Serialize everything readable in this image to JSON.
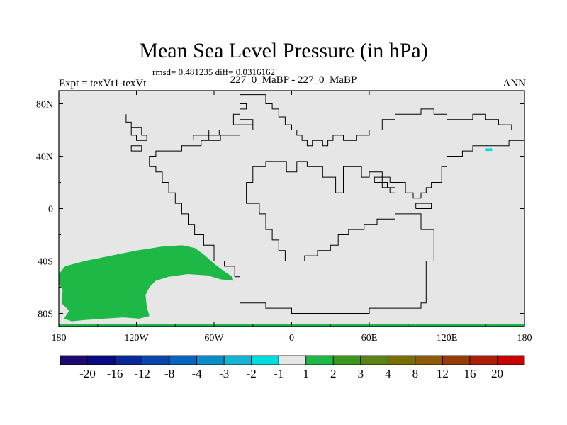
{
  "header": {
    "title": "Mean Sea Level Pressure (in hPa)",
    "stats": "rmsd= 0.481235 diff= 0.0316162",
    "experiment": "Expt = texVt1-texVt",
    "case": "227_0_MaBP - 227_0_MaBP",
    "season": "ANN"
  },
  "chart_data": {
    "type": "heatmap",
    "title": "Mean Sea Level Pressure (in hPa)",
    "xlabel": "",
    "ylabel": "",
    "x_ticks": [
      {
        "value": -180,
        "label": "180"
      },
      {
        "value": -120,
        "label": "120W"
      },
      {
        "value": -60,
        "label": "60W"
      },
      {
        "value": 0,
        "label": "0"
      },
      {
        "value": 60,
        "label": "60E"
      },
      {
        "value": 120,
        "label": "120E"
      },
      {
        "value": 180,
        "label": "180"
      }
    ],
    "y_ticks": [
      {
        "value": 80,
        "label": "80N"
      },
      {
        "value": 40,
        "label": "40N"
      },
      {
        "value": 0,
        "label": "0"
      },
      {
        "value": -40,
        "label": "40S"
      },
      {
        "value": -80,
        "label": "80S"
      }
    ],
    "xlim": [
      -180,
      180
    ],
    "ylim": [
      -90,
      90
    ],
    "background_color": "#e6e6e6",
    "colorbar": {
      "labels": [
        "-20",
        "-16",
        "-12",
        "-8",
        "-4",
        "-3",
        "-2",
        "-1",
        "1",
        "2",
        "3",
        "4",
        "8",
        "12",
        "16",
        "20"
      ],
      "colors": [
        "#1e0a6e",
        "#0a0a82",
        "#0a2896",
        "#0a46aa",
        "#0a64be",
        "#0a8cc8",
        "#14b4d2",
        "#00dcdc",
        "#e6e6e6",
        "#1eb846",
        "#3c961e",
        "#5a8214",
        "#786e0a",
        "#8c5a0a",
        "#963c0a",
        "#aa1e0a",
        "#c80000"
      ]
    },
    "features": [
      {
        "name": "green-anomaly-south-pacific",
        "value_range": "1 to 2",
        "color": "#1eb846",
        "outline": [
          [
            -180,
            -50
          ],
          [
            -175,
            -44
          ],
          [
            -160,
            -40
          ],
          [
            -140,
            -36
          ],
          [
            -120,
            -32
          ],
          [
            -100,
            -29
          ],
          [
            -85,
            -28
          ],
          [
            -75,
            -30
          ],
          [
            -68,
            -35
          ],
          [
            -60,
            -42
          ],
          [
            -52,
            -48
          ],
          [
            -46,
            -52
          ],
          [
            -45,
            -55
          ],
          [
            -55,
            -54
          ],
          [
            -65,
            -51
          ],
          [
            -80,
            -50
          ],
          [
            -95,
            -52
          ],
          [
            -105,
            -55
          ],
          [
            -110,
            -60
          ],
          [
            -113,
            -66
          ],
          [
            -112,
            -75
          ],
          [
            -110,
            -82
          ],
          [
            -118,
            -84
          ],
          [
            -130,
            -83
          ],
          [
            -145,
            -84
          ],
          [
            -160,
            -85
          ],
          [
            -170,
            -86
          ],
          [
            -176,
            -84
          ],
          [
            -172,
            -78
          ],
          [
            -178,
            -72
          ],
          [
            -177,
            -62
          ],
          [
            -180,
            -58
          ]
        ]
      },
      {
        "name": "green-strip-antarctic",
        "value_range": "1 to 2",
        "color": "#1eb846",
        "outline": [
          [
            -180,
            -88
          ],
          [
            180,
            -88
          ],
          [
            180,
            -90
          ],
          [
            -180,
            -90
          ]
        ]
      },
      {
        "name": "cyan-spot-north-pacific",
        "value_range": "-1 to -2",
        "color": "#00dcdc",
        "outline": [
          [
            150,
            46
          ],
          [
            155,
            46
          ],
          [
            155,
            44
          ],
          [
            150,
            44
          ]
        ]
      }
    ],
    "coastlines": [
      [
        [
          -20,
          87
        ],
        [
          -20,
          80
        ],
        [
          -15,
          80
        ],
        [
          -15,
          76
        ],
        [
          -10,
          76
        ],
        [
          -10,
          70
        ],
        [
          -5,
          70
        ],
        [
          -5,
          64
        ],
        [
          0,
          64
        ],
        [
          0,
          60
        ],
        [
          4,
          60
        ],
        [
          4,
          56
        ],
        [
          8,
          56
        ],
        [
          8,
          52
        ],
        [
          12,
          52
        ],
        [
          12,
          48
        ],
        [
          16,
          48
        ],
        [
          16,
          52
        ],
        [
          24,
          52
        ],
        [
          24,
          48
        ],
        [
          28,
          48
        ],
        [
          28,
          52
        ],
        [
          32,
          52
        ],
        [
          32,
          56
        ],
        [
          40,
          56
        ],
        [
          40,
          52
        ],
        [
          50,
          52
        ],
        [
          50,
          56
        ],
        [
          60,
          56
        ],
        [
          60,
          60
        ],
        [
          70,
          60
        ],
        [
          70,
          68
        ],
        [
          80,
          68
        ],
        [
          80,
          72
        ],
        [
          100,
          72
        ],
        [
          100,
          76
        ],
        [
          110,
          76
        ],
        [
          110,
          72
        ],
        [
          120,
          72
        ],
        [
          120,
          68
        ],
        [
          140,
          68
        ],
        [
          140,
          72
        ],
        [
          150,
          72
        ],
        [
          150,
          68
        ],
        [
          160,
          68
        ],
        [
          160,
          64
        ],
        [
          170,
          64
        ],
        [
          170,
          60
        ],
        [
          180,
          60
        ],
        [
          180,
          52
        ],
        [
          168,
          52
        ],
        [
          168,
          48
        ],
        [
          140,
          48
        ],
        [
          140,
          44
        ],
        [
          132,
          44
        ],
        [
          132,
          40
        ],
        [
          120,
          40
        ],
        [
          120,
          32
        ],
        [
          116,
          32
        ],
        [
          116,
          20
        ],
        [
          108,
          20
        ],
        [
          108,
          16
        ],
        [
          104,
          16
        ],
        [
          104,
          12
        ],
        [
          100,
          12
        ],
        [
          100,
          8
        ],
        [
          94,
          8
        ],
        [
          94,
          12
        ],
        [
          88,
          12
        ],
        [
          88,
          20
        ],
        [
          80,
          20
        ],
        [
          80,
          12
        ],
        [
          76,
          12
        ],
        [
          76,
          16
        ],
        [
          70,
          16
        ],
        [
          70,
          28
        ],
        [
          60,
          28
        ],
        [
          60,
          24
        ],
        [
          54,
          24
        ],
        [
          54,
          32
        ],
        [
          40,
          32
        ],
        [
          40,
          12
        ],
        [
          34,
          12
        ],
        [
          34,
          24
        ],
        [
          24,
          24
        ],
        [
          24,
          32
        ],
        [
          12,
          32
        ],
        [
          12,
          36
        ],
        [
          4,
          36
        ],
        [
          4,
          28
        ],
        [
          -4,
          28
        ],
        [
          -4,
          36
        ],
        [
          -20,
          36
        ],
        [
          -20,
          32
        ],
        [
          -30,
          32
        ],
        [
          -30,
          20
        ],
        [
          -35,
          20
        ],
        [
          -35,
          4
        ],
        [
          -25,
          4
        ],
        [
          -25,
          -4
        ],
        [
          -20,
          -4
        ],
        [
          -20,
          -16
        ],
        [
          -15,
          -16
        ],
        [
          -15,
          -24
        ],
        [
          -10,
          -24
        ],
        [
          -10,
          -32
        ],
        [
          -5,
          -32
        ],
        [
          -5,
          -40
        ],
        [
          10,
          -40
        ],
        [
          10,
          -36
        ],
        [
          20,
          -36
        ],
        [
          20,
          -32
        ],
        [
          30,
          -32
        ],
        [
          30,
          -28
        ],
        [
          36,
          -28
        ],
        [
          36,
          -20
        ],
        [
          44,
          -20
        ],
        [
          44,
          -16
        ],
        [
          56,
          -16
        ],
        [
          56,
          -12
        ],
        [
          66,
          -12
        ],
        [
          66,
          -8
        ],
        [
          80,
          -8
        ],
        [
          80,
          -4
        ],
        [
          100,
          -4
        ],
        [
          100,
          -16
        ],
        [
          110,
          -16
        ],
        [
          110,
          -40
        ],
        [
          104,
          -40
        ],
        [
          104,
          -72
        ],
        [
          100,
          -72
        ],
        [
          100,
          -76
        ],
        [
          60,
          -76
        ],
        [
          60,
          -80
        ],
        [
          0,
          -80
        ],
        [
          0,
          -76
        ],
        [
          -20,
          -76
        ],
        [
          -20,
          -72
        ],
        [
          -40,
          -72
        ],
        [
          -40,
          -52
        ],
        [
          -44,
          -52
        ],
        [
          -44,
          -44
        ],
        [
          -52,
          -44
        ],
        [
          -52,
          -40
        ],
        [
          -60,
          -40
        ],
        [
          -60,
          -28
        ],
        [
          -68,
          -28
        ],
        [
          -68,
          -20
        ],
        [
          -75,
          -20
        ],
        [
          -75,
          -12
        ],
        [
          -80,
          -12
        ],
        [
          -80,
          -4
        ],
        [
          -85,
          -4
        ],
        [
          -85,
          4
        ],
        [
          -90,
          4
        ],
        [
          -90,
          12
        ],
        [
          -95,
          12
        ],
        [
          -95,
          20
        ],
        [
          -100,
          20
        ],
        [
          -100,
          28
        ],
        [
          -105,
          28
        ],
        [
          -105,
          32
        ],
        [
          -110,
          32
        ],
        [
          -110,
          40
        ],
        [
          -105,
          40
        ],
        [
          -105,
          44
        ],
        [
          -85,
          44
        ],
        [
          -85,
          48
        ],
        [
          -70,
          48
        ],
        [
          -70,
          52
        ],
        [
          -55,
          52
        ],
        [
          -55,
          56
        ],
        [
          -40,
          56
        ],
        [
          -40,
          60
        ],
        [
          -30,
          60
        ],
        [
          -30,
          64
        ],
        [
          -45,
          64
        ],
        [
          -45,
          72
        ],
        [
          -40,
          72
        ],
        [
          -40,
          76
        ],
        [
          -35,
          76
        ],
        [
          -35,
          80
        ],
        [
          -40,
          80
        ],
        [
          -40,
          87
        ],
        [
          -20,
          87
        ]
      ],
      [
        [
          -128,
          72
        ],
        [
          -128,
          66
        ],
        [
          -124,
          66
        ],
        [
          -124,
          62
        ],
        [
          -116,
          62
        ],
        [
          -116,
          56
        ],
        [
          -112,
          56
        ],
        [
          -112,
          52
        ],
        [
          -120,
          52
        ],
        [
          -120,
          56
        ],
        [
          -124,
          56
        ],
        [
          -124,
          62
        ]
      ],
      [
        [
          -116,
          48
        ],
        [
          -116,
          44
        ],
        [
          -124,
          44
        ],
        [
          -124,
          48
        ],
        [
          -116,
          48
        ]
      ],
      [
        [
          -76,
          52
        ],
        [
          -76,
          56
        ],
        [
          -64,
          56
        ],
        [
          -64,
          60
        ],
        [
          -56,
          60
        ],
        [
          -56,
          56
        ],
        [
          -64,
          56
        ],
        [
          -64,
          52
        ]
      ],
      [
        [
          -40,
          64
        ],
        [
          -40,
          68
        ],
        [
          -30,
          68
        ],
        [
          -30,
          64
        ]
      ],
      [
        [
          64,
          20
        ],
        [
          64,
          24
        ],
        [
          76,
          24
        ],
        [
          76,
          20
        ],
        [
          80,
          20
        ],
        [
          80,
          16
        ],
        [
          74,
          16
        ],
        [
          74,
          20
        ],
        [
          64,
          20
        ]
      ],
      [
        [
          96,
          0
        ],
        [
          96,
          4
        ],
        [
          108,
          4
        ],
        [
          108,
          0
        ],
        [
          96,
          0
        ]
      ]
    ]
  }
}
